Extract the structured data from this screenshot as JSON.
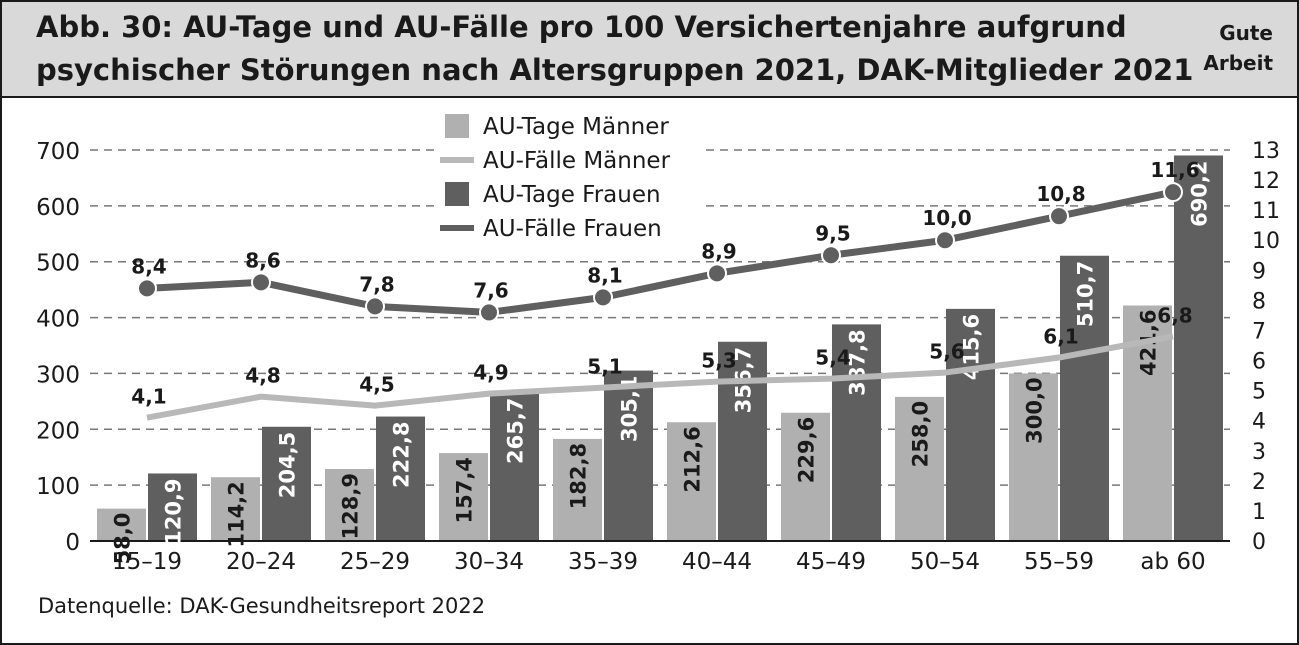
{
  "header": {
    "title_line1": "Abb. 30: AU-Tage und AU-Fälle pro 100 Versichertenjahre aufgrund",
    "title_line2": "psychischer Störungen nach Altersgruppen 2021, DAK-Mitglieder 2021",
    "brand_line1": "Gute",
    "brand_line2": "Arbeit"
  },
  "source": "Datenquelle: DAK-Gesundheitsreport 2022",
  "colors": {
    "men_bars": "#b0b0b0",
    "women_bars": "#5f5f5f",
    "men_line": "#b8b8b8",
    "women_line": "#5f5f5f",
    "header_bg": "#d9d9d9"
  },
  "chart_data": {
    "type": "bar",
    "title": "Abb. 30: AU-Tage und AU-Fälle pro 100 Versichertenjahre aufgrund psychischer Störungen nach Altersgruppen 2021, DAK-Mitglieder 2021",
    "categories": [
      "15–19",
      "20–24",
      "25–29",
      "30–34",
      "35–39",
      "40–44",
      "45–49",
      "50–54",
      "55–59",
      "ab 60"
    ],
    "y_left": {
      "min": 0,
      "max": 700,
      "ticks": [
        "0",
        "100",
        "200",
        "300",
        "400",
        "500",
        "600",
        "700"
      ]
    },
    "y_right": {
      "min": 0,
      "max": 13,
      "ticks": [
        "0",
        "1",
        "2",
        "3",
        "4",
        "5",
        "6",
        "7",
        "8",
        "9",
        "10",
        "11",
        "12",
        "13"
      ]
    },
    "grid": "horizontal dashed",
    "legend_position": "top-center",
    "series": [
      {
        "name": "AU-Tage Männer",
        "kind": "bar",
        "axis": "left",
        "values": [
          58.0,
          114.2,
          128.9,
          157.4,
          182.8,
          212.6,
          229.6,
          258.0,
          300.0,
          421.6
        ],
        "labels": [
          "58,0",
          "114,2",
          "128,9",
          "157,4",
          "182,8",
          "212,6",
          "229,6",
          "258,0",
          "300,0",
          "421,6"
        ]
      },
      {
        "name": "AU-Fälle Männer",
        "kind": "line",
        "axis": "right",
        "values": [
          4.1,
          4.8,
          4.5,
          4.9,
          5.1,
          5.3,
          5.4,
          5.6,
          6.1,
          6.8
        ],
        "labels": [
          "4,1",
          "4,8",
          "4,5",
          "4,9",
          "5,1",
          "5,3",
          "5,4",
          "5,6",
          "6,1",
          "6,8"
        ]
      },
      {
        "name": "AU-Tage Frauen",
        "kind": "bar",
        "axis": "left",
        "values": [
          120.9,
          204.5,
          222.8,
          265.7,
          305.1,
          356.7,
          387.8,
          415.6,
          510.7,
          690.2
        ],
        "labels": [
          "120,9",
          "204,5",
          "222,8",
          "265,7",
          "305,1",
          "356,7",
          "387,8",
          "415,6",
          "510,7",
          "690,2"
        ]
      },
      {
        "name": "AU-Fälle Frauen",
        "kind": "line",
        "axis": "right",
        "values": [
          8.4,
          8.6,
          7.8,
          7.6,
          8.1,
          8.9,
          9.5,
          10.0,
          10.8,
          11.6
        ],
        "labels": [
          "8,4",
          "8,6",
          "7,8",
          "7,6",
          "8,1",
          "8,9",
          "9,5",
          "10,0",
          "10,8",
          "11,6"
        ]
      }
    ]
  }
}
